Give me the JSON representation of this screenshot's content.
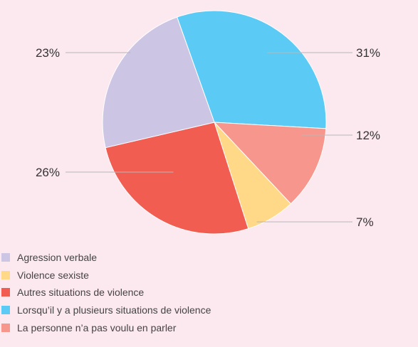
{
  "chart_data": {
    "type": "pie",
    "slices": [
      {
        "name": "Lorsqu’il y a plusieurs situations de violence",
        "value": 31,
        "label": "31%",
        "color": "#5bcaf4"
      },
      {
        "name": "La personne n’a pas voulu en parler",
        "value": 12,
        "label": "12%",
        "color": "#f7968d"
      },
      {
        "name": "Violence sexiste",
        "value": 7,
        "label": "7%",
        "color": "#ffd987"
      },
      {
        "name": "Autres situations de violence",
        "value": 26,
        "label": "26%",
        "color": "#f25d52"
      },
      {
        "name": "Agression verbale",
        "value": 23,
        "label": "23%",
        "color": "#ccc5e4"
      }
    ],
    "start_angle_deg": -19.5,
    "direction": "clockwise",
    "legend_position": "bottom-left"
  },
  "legend": [
    {
      "label": "Agression verbale",
      "color": "#ccc5e4"
    },
    {
      "label": "Violence sexiste",
      "color": "#ffd987"
    },
    {
      "label": "Autres situations de violence",
      "color": "#f25d52"
    },
    {
      "label": "Lorsqu’il y a plusieurs situations de violence",
      "color": "#5bcaf4"
    },
    {
      "label": "La personne n’a pas voulu en parler",
      "color": "#f7968d"
    }
  ],
  "colors": {
    "background": "#fce8ef",
    "leader_line": "#b8b8b8",
    "text": "#333333"
  }
}
